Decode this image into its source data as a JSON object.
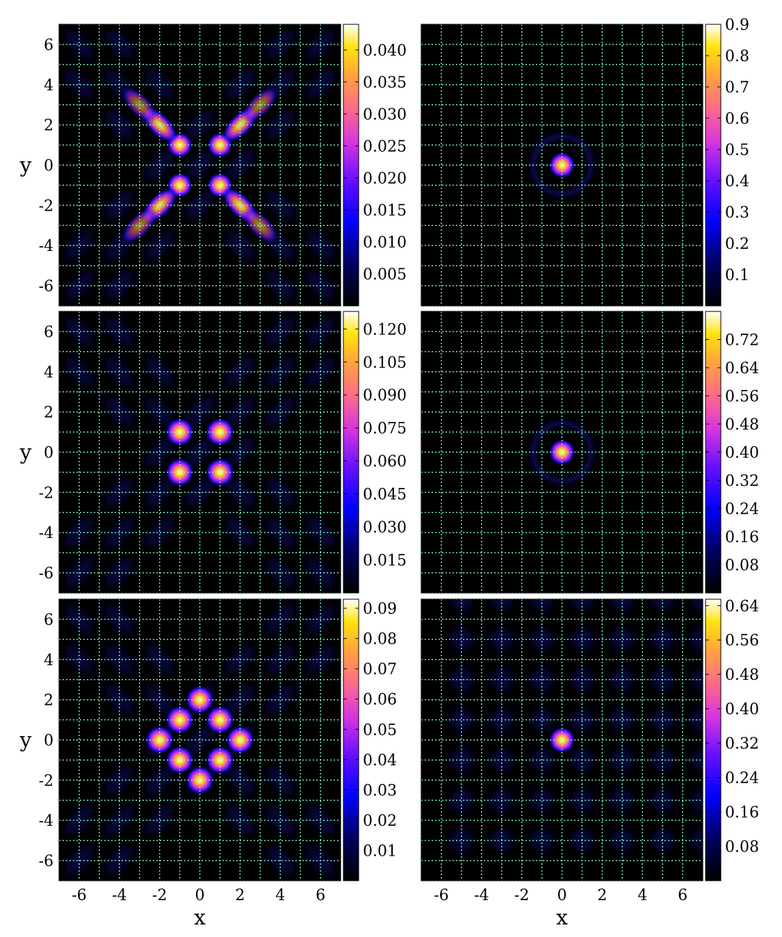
{
  "chart_data": [
    {
      "type": "heatmap",
      "panel": "left-top",
      "pattern": "four-lobes",
      "xlabel": "",
      "ylabel": "y",
      "xlim": [
        -7,
        7
      ],
      "ylim": [
        -7,
        7
      ],
      "x_ticks": [
        "-6",
        "-4",
        "-2",
        "0",
        "2",
        "4",
        "6"
      ],
      "y_ticks": [
        "6",
        "4",
        "2",
        "0",
        "-2",
        "-4",
        "-6"
      ],
      "x_tick_labels_shown": false,
      "grid": true,
      "colormap": "gnuplot2",
      "colorbar": {
        "range": [
          0,
          0.044
        ],
        "ticks": [
          "0.005",
          "0.010",
          "0.015",
          "0.020",
          "0.025",
          "0.030",
          "0.035",
          "0.040"
        ]
      },
      "peaks": [
        [
          -1,
          1
        ],
        [
          1,
          1
        ],
        [
          -1,
          -1
        ],
        [
          1,
          -1
        ],
        [
          -2,
          2
        ],
        [
          2,
          2
        ],
        [
          -2,
          -2
        ],
        [
          2,
          -2
        ],
        [
          -3,
          3
        ],
        [
          3,
          3
        ],
        [
          -3,
          -3
        ],
        [
          3,
          -3
        ]
      ]
    },
    {
      "type": "heatmap",
      "panel": "right-top",
      "pattern": "central-peak",
      "xlabel": "",
      "ylabel": "",
      "xlim": [
        -7,
        7
      ],
      "ylim": [
        -7,
        7
      ],
      "x_tick_labels_shown": false,
      "y_tick_labels_shown": false,
      "grid": true,
      "colormap": "gnuplot2",
      "colorbar": {
        "range": [
          0,
          0.9
        ],
        "ticks": [
          "0.1",
          "0.2",
          "0.3",
          "0.4",
          "0.5",
          "0.6",
          "0.7",
          "0.8",
          "0.9"
        ]
      },
      "peaks": [
        [
          0,
          0
        ]
      ]
    },
    {
      "type": "heatmap",
      "panel": "left-middle",
      "pattern": "diamond-lobes",
      "xlabel": "",
      "ylabel": "y",
      "xlim": [
        -7,
        7
      ],
      "ylim": [
        -7,
        7
      ],
      "x_ticks": [
        "-6",
        "-4",
        "-2",
        "0",
        "2",
        "4",
        "6"
      ],
      "y_ticks": [
        "6",
        "4",
        "2",
        "0",
        "-2",
        "-4",
        "-6"
      ],
      "x_tick_labels_shown": false,
      "grid": true,
      "colormap": "gnuplot2",
      "colorbar": {
        "range": [
          0,
          0.128
        ],
        "ticks": [
          "0.015",
          "0.030",
          "0.045",
          "0.060",
          "0.075",
          "0.090",
          "0.105",
          "0.120"
        ]
      },
      "peaks": [
        [
          -1,
          1
        ],
        [
          1,
          1
        ],
        [
          -1,
          -1
        ],
        [
          1,
          -1
        ]
      ]
    },
    {
      "type": "heatmap",
      "panel": "right-middle",
      "pattern": "central-peak",
      "xlabel": "",
      "ylabel": "",
      "xlim": [
        -7,
        7
      ],
      "ylim": [
        -7,
        7
      ],
      "x_tick_labels_shown": false,
      "y_tick_labels_shown": false,
      "grid": true,
      "colormap": "gnuplot2",
      "colorbar": {
        "range": [
          0,
          0.8
        ],
        "ticks": [
          "0.08",
          "0.16",
          "0.24",
          "0.32",
          "0.40",
          "0.48",
          "0.56",
          "0.64",
          "0.72"
        ]
      },
      "peaks": [
        [
          0,
          0
        ]
      ]
    },
    {
      "type": "heatmap",
      "panel": "left-bottom",
      "pattern": "diamond-ring",
      "xlabel": "x",
      "ylabel": "y",
      "xlim": [
        -7,
        7
      ],
      "ylim": [
        -7,
        7
      ],
      "x_ticks": [
        "-6",
        "-4",
        "-2",
        "0",
        "2",
        "4",
        "6"
      ],
      "y_ticks": [
        "6",
        "4",
        "2",
        "0",
        "-2",
        "-4",
        "-6"
      ],
      "grid": true,
      "colormap": "gnuplot2",
      "colorbar": {
        "range": [
          0,
          0.093
        ],
        "ticks": [
          "0.01",
          "0.02",
          "0.03",
          "0.04",
          "0.05",
          "0.06",
          "0.07",
          "0.08",
          "0.09"
        ]
      },
      "peaks": [
        [
          0,
          2
        ],
        [
          -1,
          1
        ],
        [
          1,
          1
        ],
        [
          -2,
          0
        ],
        [
          2,
          0
        ],
        [
          -1,
          -1
        ],
        [
          1,
          -1
        ],
        [
          0,
          -2
        ]
      ]
    },
    {
      "type": "heatmap",
      "panel": "right-bottom",
      "pattern": "central-peak-lattice",
      "xlabel": "x",
      "ylabel": "",
      "xlim": [
        -7,
        7
      ],
      "ylim": [
        -7,
        7
      ],
      "x_ticks": [
        "-6",
        "-4",
        "-2",
        "0",
        "2",
        "4",
        "6"
      ],
      "y_tick_labels_shown": false,
      "grid": true,
      "colormap": "gnuplot2",
      "colorbar": {
        "range": [
          0,
          0.655
        ],
        "ticks": [
          "0.08",
          "0.16",
          "0.24",
          "0.32",
          "0.40",
          "0.48",
          "0.56",
          "0.64"
        ]
      },
      "peaks": [
        [
          0,
          0
        ]
      ]
    }
  ],
  "colors": {
    "grid": "#7fffd4",
    "frame": "#000000"
  }
}
